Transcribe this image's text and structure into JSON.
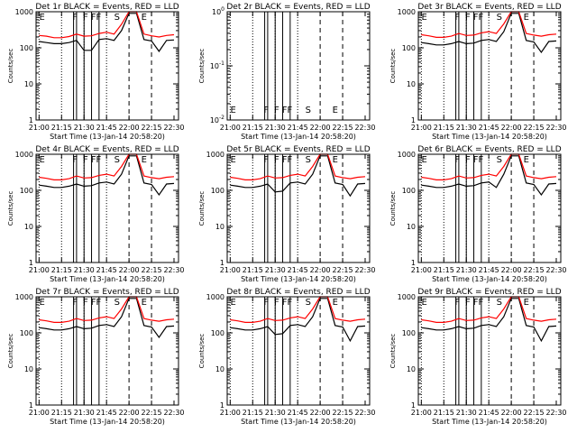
{
  "figure": {
    "x_axis_label": "Start Time (13-Jan-14 20:58:20)",
    "y_axis_label": "Counts/sec",
    "x_ticks": [
      "21:00",
      "21:15",
      "21:30",
      "21:45",
      "22:00",
      "22:15",
      "22:30"
    ],
    "colors": {
      "events": "#000000",
      "lld": "#ff0000",
      "axes": "#000000"
    },
    "flag_letters": [
      "E",
      "F",
      "F",
      "FF",
      "S",
      "E"
    ]
  },
  "chart_data": [
    {
      "type": "line",
      "title": "Det 1r BLACK = Events, RED = LLD",
      "ylim": [
        1,
        1000
      ],
      "yscale": "log",
      "y_ticks": [
        "1",
        "10",
        "100",
        "1000"
      ],
      "x": [
        0,
        5,
        10,
        15,
        20,
        25,
        30,
        35,
        40,
        45,
        50,
        55,
        60,
        65,
        70,
        75,
        80,
        85,
        90
      ],
      "series": [
        {
          "name": "BLACK = Events",
          "values": [
            150,
            140,
            130,
            130,
            140,
            160,
            85,
            85,
            170,
            180,
            160,
            300,
            900,
            900,
            170,
            155,
            80,
            160,
            165
          ]
        },
        {
          "name": "RED = LLD",
          "values": [
            220,
            210,
            190,
            190,
            205,
            240,
            210,
            215,
            250,
            270,
            240,
            450,
            1000,
            1000,
            240,
            215,
            200,
            220,
            230
          ]
        }
      ]
    },
    {
      "type": "line",
      "title": "Det 2r BLACK = Events, RED = LLD",
      "ylim": [
        0.01,
        1
      ],
      "yscale": "log",
      "y_ticks": [
        "10^-2",
        "10^-1",
        "10^0"
      ],
      "x": [
        0,
        90
      ],
      "series": []
    },
    {
      "type": "line",
      "title": "Det 3r BLACK = Events, RED = LLD",
      "ylim": [
        1,
        1000
      ],
      "yscale": "log",
      "y_ticks": [
        "1",
        "10",
        "100",
        "1000"
      ],
      "x": [
        0,
        5,
        10,
        15,
        20,
        25,
        30,
        35,
        40,
        45,
        50,
        55,
        60,
        65,
        70,
        75,
        80,
        85,
        90
      ],
      "series": [
        {
          "name": "BLACK = Events",
          "values": [
            140,
            130,
            120,
            120,
            130,
            150,
            130,
            135,
            160,
            170,
            150,
            280,
            900,
            900,
            160,
            145,
            75,
            150,
            155
          ]
        },
        {
          "name": "RED = LLD",
          "values": [
            230,
            215,
            195,
            195,
            210,
            250,
            220,
            225,
            260,
            280,
            250,
            460,
            1000,
            1000,
            250,
            225,
            210,
            230,
            240
          ]
        }
      ]
    },
    {
      "type": "line",
      "title": "Det 4r BLACK = Events, RED = LLD",
      "ylim": [
        1,
        1000
      ],
      "yscale": "log",
      "y_ticks": [
        "1",
        "10",
        "100",
        "1000"
      ],
      "x": [
        0,
        5,
        10,
        15,
        20,
        25,
        30,
        35,
        40,
        45,
        50,
        55,
        60,
        65,
        70,
        75,
        80,
        85,
        90
      ],
      "series": [
        {
          "name": "BLACK = Events",
          "values": [
            140,
            130,
            120,
            120,
            130,
            150,
            130,
            135,
            160,
            170,
            150,
            280,
            900,
            900,
            160,
            145,
            75,
            150,
            155
          ]
        },
        {
          "name": "RED = LLD",
          "values": [
            230,
            215,
            195,
            195,
            210,
            250,
            220,
            225,
            260,
            280,
            250,
            460,
            1000,
            1000,
            250,
            225,
            210,
            230,
            240
          ]
        }
      ]
    },
    {
      "type": "line",
      "title": "Det 5r BLACK = Events, RED = LLD",
      "ylim": [
        1,
        1000
      ],
      "yscale": "log",
      "y_ticks": [
        "1",
        "10",
        "100",
        "1000"
      ],
      "x": [
        0,
        5,
        10,
        15,
        20,
        25,
        30,
        35,
        40,
        45,
        50,
        55,
        60,
        65,
        70,
        75,
        80,
        85,
        90
      ],
      "series": [
        {
          "name": "BLACK = Events",
          "values": [
            140,
            130,
            120,
            120,
            130,
            150,
            90,
            95,
            160,
            170,
            150,
            280,
            900,
            900,
            160,
            145,
            70,
            150,
            155
          ]
        },
        {
          "name": "RED = LLD",
          "values": [
            230,
            215,
            195,
            195,
            210,
            250,
            220,
            225,
            260,
            280,
            250,
            460,
            1000,
            1000,
            250,
            225,
            210,
            230,
            240
          ]
        }
      ]
    },
    {
      "type": "line",
      "title": "Det 6r BLACK = Events, RED = LLD",
      "ylim": [
        1,
        1000
      ],
      "yscale": "log",
      "y_ticks": [
        "1",
        "10",
        "100",
        "1000"
      ],
      "x": [
        0,
        5,
        10,
        15,
        20,
        25,
        30,
        35,
        40,
        45,
        50,
        55,
        60,
        65,
        70,
        75,
        80,
        85,
        90
      ],
      "series": [
        {
          "name": "BLACK = Events",
          "values": [
            140,
            130,
            120,
            120,
            130,
            150,
            130,
            135,
            160,
            170,
            120,
            280,
            900,
            900,
            160,
            145,
            75,
            150,
            155
          ]
        },
        {
          "name": "RED = LLD",
          "values": [
            230,
            215,
            195,
            195,
            210,
            250,
            220,
            225,
            260,
            280,
            250,
            460,
            1000,
            1000,
            250,
            225,
            210,
            230,
            240
          ]
        }
      ]
    },
    {
      "type": "line",
      "title": "Det 7r BLACK = Events, RED = LLD",
      "ylim": [
        1,
        1000
      ],
      "yscale": "log",
      "y_ticks": [
        "1",
        "10",
        "100",
        "1000"
      ],
      "x": [
        0,
        5,
        10,
        15,
        20,
        25,
        30,
        35,
        40,
        45,
        50,
        55,
        60,
        65,
        70,
        75,
        80,
        85,
        90
      ],
      "series": [
        {
          "name": "BLACK = Events",
          "values": [
            140,
            130,
            120,
            120,
            130,
            150,
            130,
            135,
            160,
            170,
            150,
            280,
            900,
            900,
            160,
            145,
            75,
            150,
            155
          ]
        },
        {
          "name": "RED = LLD",
          "values": [
            230,
            215,
            195,
            195,
            210,
            250,
            220,
            225,
            260,
            280,
            250,
            460,
            1000,
            1000,
            250,
            225,
            210,
            230,
            240
          ]
        }
      ]
    },
    {
      "type": "line",
      "title": "Det 8r BLACK = Events, RED = LLD",
      "ylim": [
        1,
        1000
      ],
      "yscale": "log",
      "y_ticks": [
        "1",
        "10",
        "100",
        "1000"
      ],
      "x": [
        0,
        5,
        10,
        15,
        20,
        25,
        30,
        35,
        40,
        45,
        50,
        55,
        60,
        65,
        70,
        75,
        80,
        85,
        90
      ],
      "series": [
        {
          "name": "BLACK = Events",
          "values": [
            140,
            130,
            120,
            120,
            130,
            150,
            90,
            95,
            160,
            170,
            150,
            280,
            900,
            900,
            160,
            145,
            60,
            150,
            155
          ]
        },
        {
          "name": "RED = LLD",
          "values": [
            230,
            215,
            195,
            195,
            210,
            250,
            220,
            225,
            260,
            280,
            250,
            460,
            1000,
            1000,
            250,
            225,
            210,
            230,
            240
          ]
        }
      ]
    },
    {
      "type": "line",
      "title": "Det 9r BLACK = Events, RED = LLD",
      "ylim": [
        1,
        1000
      ],
      "yscale": "log",
      "y_ticks": [
        "1",
        "10",
        "100",
        "1000"
      ],
      "x": [
        0,
        5,
        10,
        15,
        20,
        25,
        30,
        35,
        40,
        45,
        50,
        55,
        60,
        65,
        70,
        75,
        80,
        85,
        90
      ],
      "series": [
        {
          "name": "BLACK = Events",
          "values": [
            140,
            130,
            120,
            120,
            130,
            150,
            130,
            135,
            160,
            170,
            150,
            280,
            900,
            900,
            160,
            145,
            60,
            150,
            155
          ]
        },
        {
          "name": "RED = LLD",
          "values": [
            230,
            215,
            195,
            195,
            210,
            250,
            220,
            225,
            260,
            280,
            250,
            460,
            1000,
            1000,
            250,
            225,
            210,
            230,
            240
          ]
        }
      ]
    }
  ]
}
